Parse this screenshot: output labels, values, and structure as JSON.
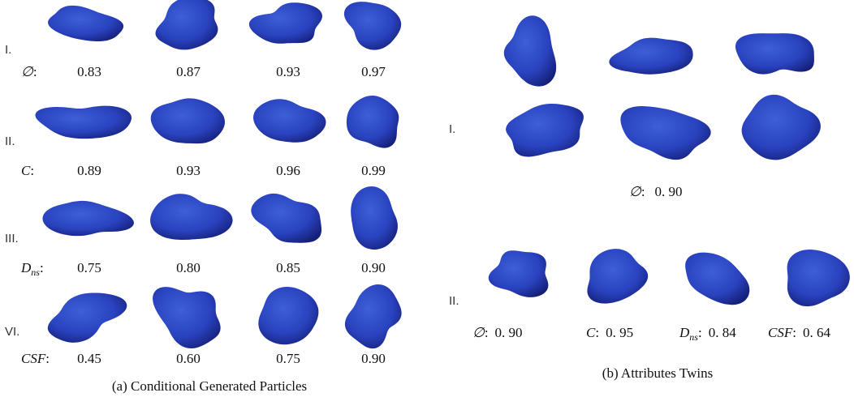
{
  "panel_a": {
    "caption": "(a) Conditional Generated Particles",
    "rows": [
      {
        "label": "I.",
        "symbol": "∅",
        "separator": ":",
        "values": [
          "0.83",
          "0.87",
          "0.93",
          "0.97"
        ]
      },
      {
        "label": "II.",
        "symbol": "C",
        "separator": ":",
        "values": [
          "0.89",
          "0.93",
          "0.96",
          "0.99"
        ]
      },
      {
        "label": "III.",
        "symbol": "D",
        "subscript": "ns",
        "separator": ":",
        "values": [
          "0.75",
          "0.80",
          "0.85",
          "0.90"
        ]
      },
      {
        "label": "VI.",
        "symbol": "CSF",
        "separator": ":",
        "values": [
          "0.45",
          "0.60",
          "0.75",
          "0.90"
        ]
      }
    ]
  },
  "panel_b": {
    "caption": "(b) Attributes Twins",
    "row_1": {
      "label": "I.",
      "symbol": "∅",
      "separator": ":",
      "value": "0. 90"
    },
    "row_2": {
      "label": "II.",
      "items": [
        {
          "symbol": "∅",
          "separator": ":",
          "value": "0. 90"
        },
        {
          "symbol": "C",
          "separator": ":",
          "value": "0. 95"
        },
        {
          "symbol": "D",
          "subscript": "ns",
          "separator": ":",
          "value": "0. 84"
        },
        {
          "symbol": "CSF",
          "separator": ":",
          "value": "0. 64"
        }
      ]
    }
  }
}
